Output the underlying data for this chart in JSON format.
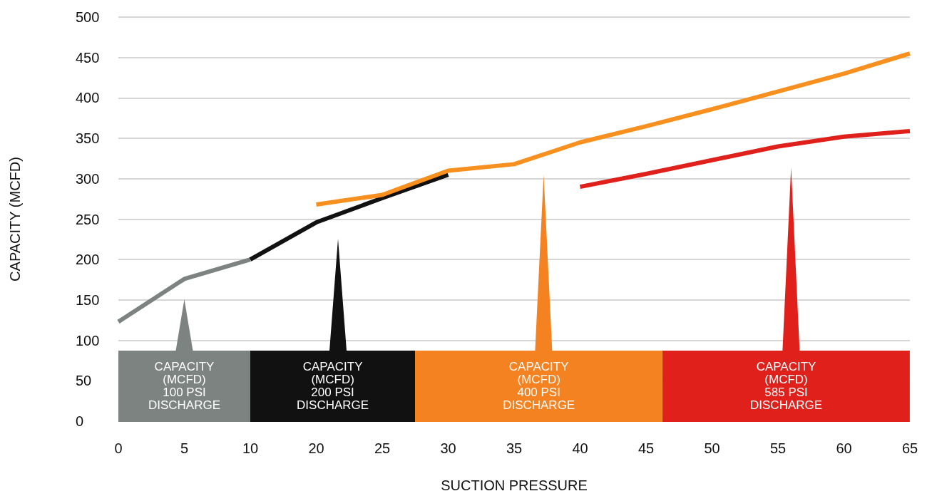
{
  "chart_data": {
    "type": "line",
    "xlabel": "SUCTION PRESSURE",
    "ylabel": "CAPACITY (MCFD)",
    "categories": [
      "0",
      "5",
      "10",
      "20",
      "25",
      "30",
      "35",
      "40",
      "45",
      "50",
      "55",
      "60",
      "65"
    ],
    "series": [
      {
        "color": "#7d8380",
        "values": [
          123,
          176,
          200,
          null,
          null,
          null,
          null,
          null,
          null,
          null,
          null,
          null,
          null
        ]
      },
      {
        "color": "#111111",
        "values": [
          null,
          null,
          200,
          246,
          276,
          305,
          null,
          null,
          null,
          null,
          null,
          null,
          null
        ]
      },
      {
        "color": "#f7901e",
        "values": [
          null,
          null,
          null,
          268,
          280,
          310,
          318,
          345,
          365,
          386,
          408,
          430,
          455
        ]
      },
      {
        "color": "#e0201b",
        "values": [
          null,
          null,
          null,
          null,
          null,
          null,
          null,
          290,
          306,
          323,
          340,
          352,
          359
        ]
      }
    ],
    "ylim": [
      0,
      500
    ],
    "yticks": [
      0,
      50,
      100,
      150,
      200,
      250,
      300,
      350,
      400,
      450,
      500
    ],
    "grid": "y",
    "marker": "none",
    "line_style": "solid",
    "annotations": [
      "CAPACITY\n(MCFD)\n100 PSI\nDISCHARGE",
      "CAPACITY\n(MCFD)\n200 PSI\nDISCHARGE",
      "CAPACITY\n(MCFD)\n400 PSI\nDISCHARGE",
      "CAPACITY\n(MCFD)\n585 PSI\nDISCHARGE"
    ]
  }
}
